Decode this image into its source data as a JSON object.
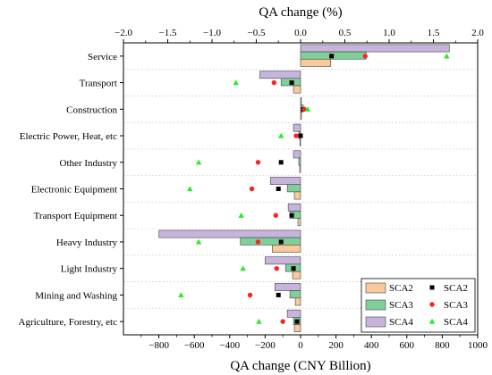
{
  "chart_data": {
    "type": "bar",
    "orientation": "horizontal",
    "categories": [
      "Service",
      "Transport",
      "Construction",
      "Electric Power, Heat, etc",
      "Other Industry",
      "Electronic Equipment",
      "Transport Equipment",
      "Heavy Industry",
      "Light Industry",
      "Mining and Washing",
      "Agriculture, Forestry, etc"
    ],
    "bar_series": [
      {
        "name": "SCA2",
        "color": "#f7c99b",
        "values": [
          170,
          -40,
          5,
          -3,
          -5,
          -35,
          -15,
          -160,
          -45,
          -30,
          -35
        ]
      },
      {
        "name": "SCA3",
        "color": "#7fcf99",
        "values": [
          370,
          -110,
          15,
          -10,
          -10,
          -75,
          -60,
          -340,
          -85,
          -60,
          -40
        ]
      },
      {
        "name": "SCA4",
        "color": "#c7b4dc",
        "values": [
          840,
          -230,
          5,
          -40,
          -40,
          -170,
          -70,
          -800,
          -200,
          -145,
          -75
        ]
      }
    ],
    "marker_series": [
      {
        "name": "SCA2",
        "marker": "square",
        "color": "#000000",
        "values": [
          0.35,
          -0.1,
          0.03,
          0.0,
          -0.22,
          -0.25,
          -0.1,
          -0.22,
          -0.08,
          -0.25,
          -0.04
        ]
      },
      {
        "name": "SCA3",
        "marker": "circle",
        "color": "#ff2020",
        "values": [
          0.73,
          -0.3,
          0.04,
          -0.05,
          -0.48,
          -0.55,
          -0.28,
          -0.48,
          -0.27,
          -0.57,
          -0.2
        ]
      },
      {
        "name": "SCA4",
        "marker": "triangle",
        "color": "#22ee22",
        "values": [
          1.65,
          -0.73,
          0.08,
          -0.22,
          -1.15,
          -1.25,
          -0.67,
          -1.15,
          -0.65,
          -1.35,
          -0.47
        ]
      }
    ],
    "x_bottom": {
      "label": "QA change (CNY Billion)",
      "range": [
        -1000,
        1000
      ],
      "ticks": [
        -800,
        -600,
        -400,
        -200,
        0,
        200,
        400,
        600,
        800,
        1000
      ]
    },
    "x_top": {
      "label": "QA change (%)",
      "range": [
        -2.0,
        2.0
      ],
      "ticks": [
        -2.0,
        -1.5,
        -1.0,
        -0.5,
        0.0,
        0.5,
        1.0,
        1.5,
        2.0
      ],
      "tick_labels": [
        "−2.0",
        "−1.5",
        "−1.0",
        "−0.5",
        "0.0",
        "0.5",
        "1.0",
        "1.5",
        "2.0"
      ]
    },
    "legend": {
      "placement": "bottom-right",
      "bar_labels": [
        "SCA2",
        "SCA3",
        "SCA4"
      ],
      "marker_labels": [
        "SCA2",
        "SCA3",
        "SCA4"
      ]
    },
    "grid": "horizontal-dotted"
  }
}
